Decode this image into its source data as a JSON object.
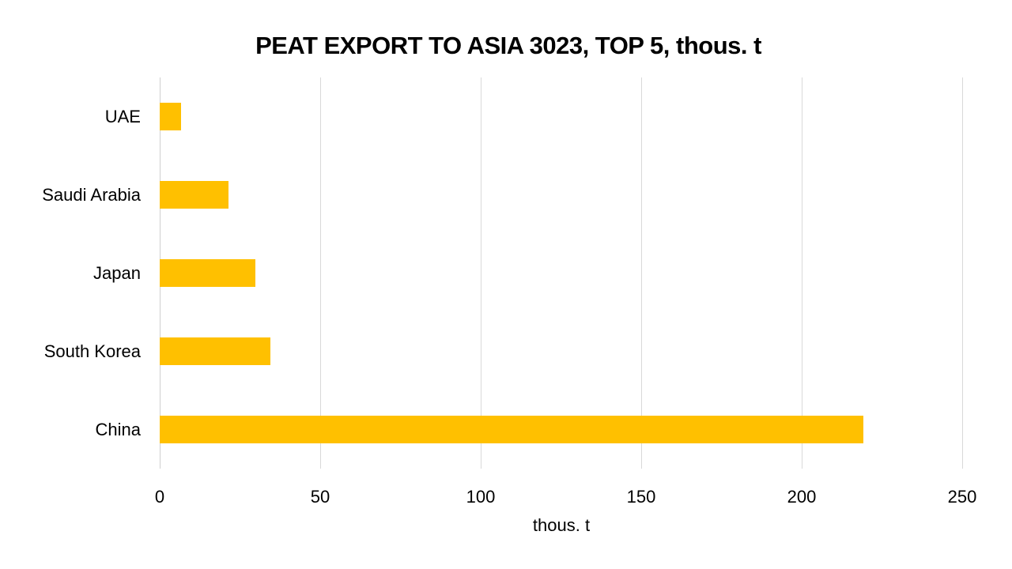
{
  "chart_data": {
    "type": "bar",
    "orientation": "horizontal",
    "title": "PEAT EXPORT TO ASIA  3023, TOP 5, thous. t",
    "categories": [
      "UAE",
      "Saudi Arabia",
      "Japan",
      "South Korea",
      "China"
    ],
    "values": [
      6.6,
      21.4,
      29.8,
      34.5,
      219.2
    ],
    "xlabel": "thous. t",
    "ylabel": "",
    "xlim": [
      0,
      250
    ],
    "xticks": [
      "0",
      "50",
      "100",
      "150",
      "200",
      "250"
    ],
    "grid": true,
    "legend": "none",
    "bar_color": "#FFC000"
  }
}
